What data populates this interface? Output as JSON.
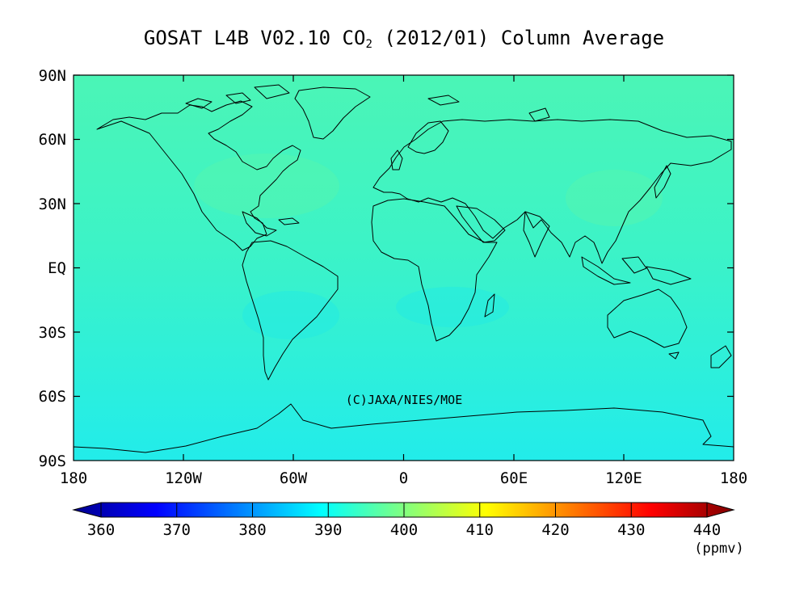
{
  "title": {
    "prefix": "GOSAT L4B V02.10 CO",
    "subscript": "2",
    "suffix": " (2012/01) Column Average"
  },
  "copyright": "(C)JAXA/NIES/MOE",
  "map": {
    "lat_labels": [
      "90N",
      "60N",
      "30N",
      "EQ",
      "30S",
      "60S",
      "90S"
    ],
    "lon_labels": [
      "180",
      "120W",
      "60W",
      "0",
      "60E",
      "120E",
      "180"
    ],
    "field_colors": {
      "north": "#4bf5b6",
      "mid": "#3cf3c7",
      "south": "#22ecea"
    }
  },
  "colorbar": {
    "labels": [
      "360",
      "370",
      "380",
      "390",
      "400",
      "410",
      "420",
      "430",
      "440"
    ],
    "unit": "(ppmv)",
    "colors": [
      "#00008f",
      "#0000ff",
      "#0080ff",
      "#00ffff",
      "#80ff80",
      "#ffff00",
      "#ff8000",
      "#ff0000",
      "#800000"
    ]
  }
}
